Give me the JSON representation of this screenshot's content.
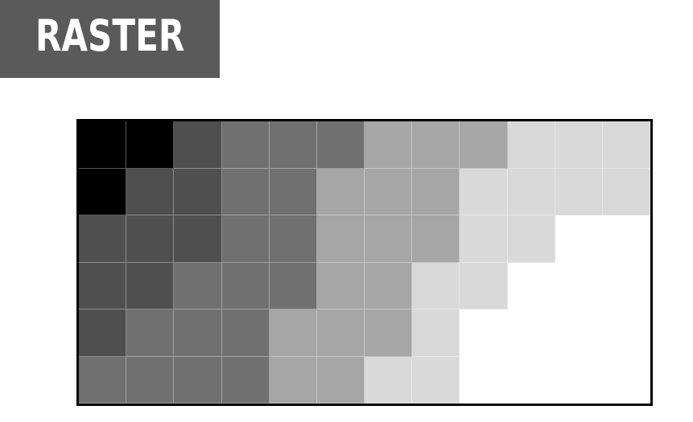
{
  "title": "RASTER",
  "palette": {
    "0": "#000000",
    "1": "#4f4f4f",
    "2": "#707070",
    "3": "#a6a6a6",
    "4": "#d9d9d9",
    "5": "#ffffff"
  },
  "grid": [
    [
      0,
      0,
      1,
      2,
      2,
      2,
      3,
      3,
      3,
      4,
      4,
      4
    ],
    [
      0,
      1,
      1,
      2,
      2,
      3,
      3,
      3,
      4,
      4,
      4,
      4
    ],
    [
      1,
      1,
      1,
      2,
      2,
      3,
      3,
      3,
      4,
      4,
      5,
      5
    ],
    [
      1,
      1,
      2,
      2,
      2,
      3,
      3,
      4,
      4,
      5,
      5,
      5
    ],
    [
      1,
      2,
      2,
      2,
      3,
      3,
      3,
      4,
      5,
      5,
      5,
      5
    ],
    [
      2,
      2,
      2,
      2,
      3,
      3,
      4,
      4,
      5,
      5,
      5,
      5
    ]
  ]
}
